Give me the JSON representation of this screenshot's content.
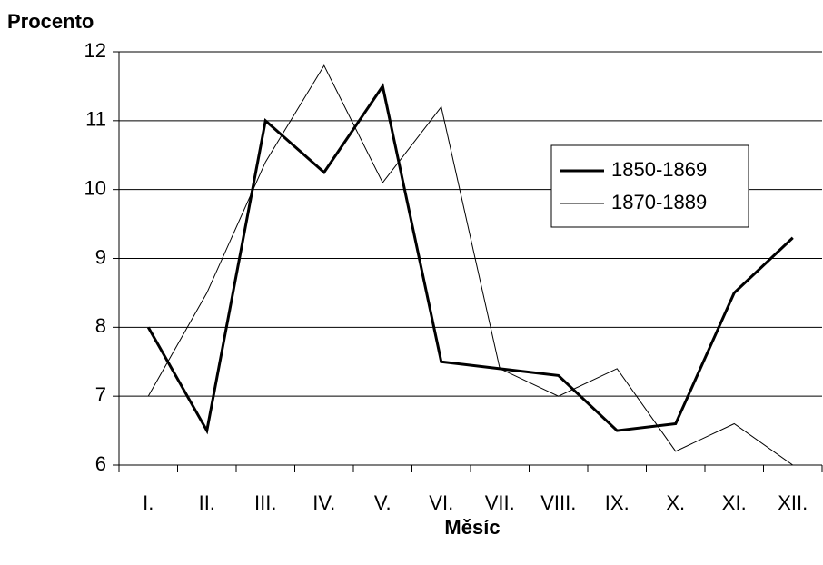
{
  "chart_data": {
    "type": "line",
    "y_label": "Procento",
    "x_label": "Měsíc",
    "categories": [
      "I.",
      "II.",
      "III.",
      "IV.",
      "V.",
      "VI.",
      "VII.",
      "VIII.",
      "IX.",
      "X.",
      "XI.",
      "XII."
    ],
    "series": [
      {
        "name": "1850-1869",
        "color": "#000000",
        "line_width": 3,
        "values": [
          8,
          6.5,
          11,
          10.25,
          11.5,
          7.5,
          7.4,
          7.3,
          6.5,
          6.6,
          8.5,
          9.3
        ]
      },
      {
        "name": "1870-1889",
        "color": "#000000",
        "line_width": 1,
        "values": [
          7,
          8.5,
          10.4,
          11.8,
          10.1,
          11.2,
          7.4,
          7.0,
          7.4,
          6.2,
          6.6,
          6.0
        ]
      }
    ],
    "ylim": [
      6,
      12
    ],
    "yticks": [
      6,
      7,
      8,
      9,
      10,
      11,
      12
    ],
    "grid": true,
    "legend": "upper right"
  }
}
